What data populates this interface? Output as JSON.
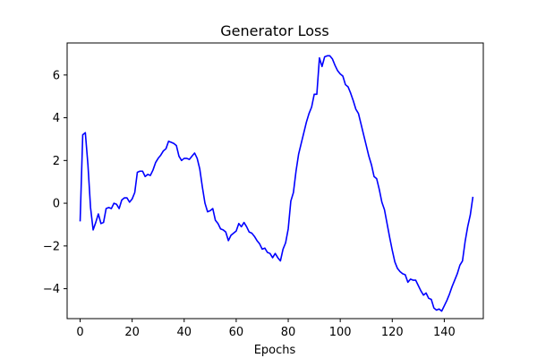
{
  "chart_data": {
    "type": "line",
    "title": "Generator Loss",
    "xlabel": "Epochs",
    "ylabel": "",
    "xlim": [
      -5,
      155
    ],
    "ylim": [
      -5.4,
      7.5
    ],
    "xticks": [
      0,
      20,
      40,
      60,
      80,
      100,
      120,
      140
    ],
    "yticks": [
      -4,
      -2,
      0,
      2,
      4,
      6
    ],
    "grid": false,
    "line_color": "#0000ff",
    "series": [
      {
        "values": [
          -0.85,
          3.2,
          3.3,
          1.8,
          -0.2,
          -1.25,
          -0.9,
          -0.5,
          -0.95,
          -0.9,
          -0.25,
          -0.2,
          -0.25,
          0.0,
          -0.05,
          -0.25,
          0.15,
          0.25,
          0.25,
          0.05,
          0.2,
          0.5,
          1.45,
          1.5,
          1.5,
          1.25,
          1.35,
          1.3,
          1.55,
          1.9,
          2.1,
          2.25,
          2.45,
          2.55,
          2.9,
          2.85,
          2.8,
          2.7,
          2.2,
          2.0,
          2.1,
          2.1,
          2.05,
          2.2,
          2.35,
          2.1,
          1.6,
          0.75,
          0.0,
          -0.4,
          -0.35,
          -0.25,
          -0.8,
          -0.95,
          -1.2,
          -1.25,
          -1.35,
          -1.75,
          -1.5,
          -1.4,
          -1.3,
          -0.95,
          -1.1,
          -0.9,
          -1.1,
          -1.35,
          -1.4,
          -1.55,
          -1.75,
          -1.9,
          -2.15,
          -2.1,
          -2.3,
          -2.35,
          -2.55,
          -2.35,
          -2.55,
          -2.7,
          -2.15,
          -1.85,
          -1.2,
          0.1,
          0.5,
          1.5,
          2.3,
          2.8,
          3.3,
          3.8,
          4.2,
          4.5,
          5.1,
          5.1,
          6.8,
          6.4,
          6.85,
          6.9,
          6.9,
          6.75,
          6.45,
          6.2,
          6.05,
          5.95,
          5.55,
          5.45,
          5.15,
          4.8,
          4.4,
          4.2,
          3.7,
          3.2,
          2.7,
          2.2,
          1.8,
          1.25,
          1.15,
          0.65,
          0.05,
          -0.3,
          -0.95,
          -1.6,
          -2.2,
          -2.75,
          -3.05,
          -3.2,
          -3.3,
          -3.35,
          -3.7,
          -3.55,
          -3.6,
          -3.6,
          -3.85,
          -4.1,
          -4.3,
          -4.2,
          -4.45,
          -4.5,
          -4.9,
          -5.0,
          -4.95,
          -5.05,
          -4.8,
          -4.55,
          -4.25,
          -3.9,
          -3.6,
          -3.3,
          -2.9,
          -2.7,
          -1.8,
          -1.1,
          -0.55,
          0.3
        ]
      }
    ]
  }
}
